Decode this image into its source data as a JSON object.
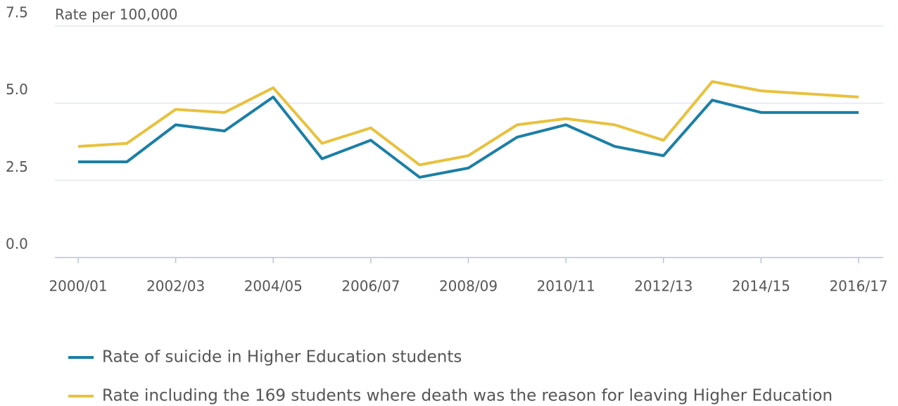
{
  "chart_data": {
    "type": "line",
    "y_label": "Rate per 100,000",
    "categories": [
      "2000/01",
      null,
      "2002/03",
      null,
      "2004/05",
      null,
      "2006/07",
      null,
      "2008/09",
      null,
      "2010/11",
      null,
      "2012/13",
      null,
      "2014/15",
      null,
      "2016/17"
    ],
    "series": [
      {
        "name": "Rate of suicide in Higher Education students",
        "color": "#1b7fa6",
        "values": [
          3.1,
          3.1,
          4.3,
          4.1,
          5.2,
          3.2,
          3.8,
          2.6,
          2.9,
          3.9,
          4.3,
          3.6,
          3.3,
          5.1,
          4.7,
          4.7,
          4.7
        ]
      },
      {
        "name": "Rate including the 169 students where death was the reason for leaving Higher Education",
        "color": "#e8c23e",
        "values": [
          3.6,
          3.7,
          4.8,
          4.7,
          5.5,
          3.7,
          4.2,
          3.0,
          3.3,
          4.3,
          4.5,
          4.3,
          3.8,
          5.7,
          5.4,
          5.3,
          5.2
        ]
      }
    ],
    "ylim": [
      0,
      7.5
    ],
    "yticks": [
      {
        "value": 0,
        "label": "0.0"
      },
      2.5,
      {
        "value": 5,
        "label": "5.0"
      },
      7.5
    ],
    "grid": true,
    "legend": "bottom"
  }
}
